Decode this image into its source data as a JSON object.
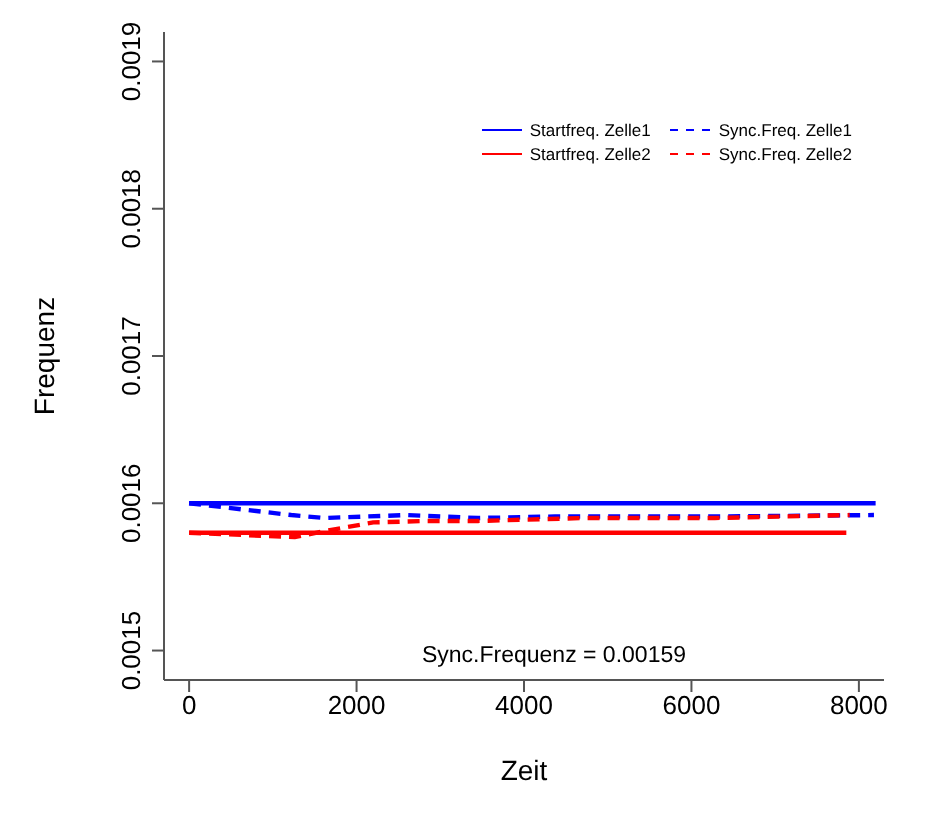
{
  "chart_data": {
    "type": "line",
    "xlabel": "Zeit",
    "ylabel": "Frequenz",
    "xlim": [
      -300,
      8300
    ],
    "xticks": [
      0,
      2000,
      4000,
      6000,
      8000
    ],
    "ylim": [
      0.00148,
      0.00192
    ],
    "yticks": [
      0.0015,
      0.0016,
      0.0017,
      0.0018,
      0.0019
    ],
    "grid": false,
    "legend": "top right",
    "marker": "none",
    "annotations": [
      "Sync.Frequenz = 0.00159"
    ],
    "series": [
      {
        "name": "Startfreq. Zelle1",
        "color": "#0000ff",
        "line_style": "solid",
        "x": [
          0,
          8200
        ],
        "values": [
          0.0016,
          0.0016
        ]
      },
      {
        "name": "Startfreq. Zelle2",
        "color": "#ff0000",
        "line_style": "solid",
        "x": [
          0,
          7850
        ],
        "values": [
          0.00158,
          0.00158
        ]
      },
      {
        "name": "Sync.Freq. Zelle1",
        "color": "#0000ff",
        "line_style": "dashed",
        "x": [
          0,
          1220,
          1610,
          2600,
          3450,
          4370,
          6280,
          8180
        ],
        "values": [
          0.0016,
          0.001592,
          0.00159,
          0.001592,
          0.00159,
          0.001591,
          0.001591,
          0.001592
        ]
      },
      {
        "name": "Sync.Freq. Zelle2",
        "color": "#ff0000",
        "line_style": "dashed",
        "x": [
          0,
          1260,
          1610,
          2200,
          2830,
          3450,
          4740,
          6280,
          7890
        ],
        "values": [
          0.00158,
          0.001577,
          0.001581,
          0.001587,
          0.001588,
          0.001588,
          0.00159,
          0.00159,
          0.001592
        ]
      }
    ]
  }
}
